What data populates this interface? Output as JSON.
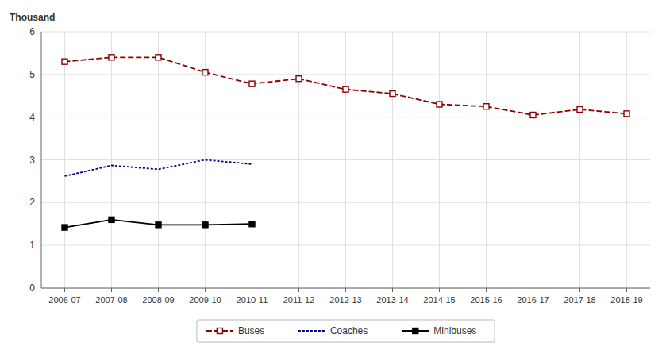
{
  "chart_data": {
    "type": "line",
    "ylabel": "Thousand",
    "categories": [
      "2006-07",
      "2007-08",
      "2008-09",
      "2009-10",
      "2010-11",
      "2011-12",
      "2012-13",
      "2013-14",
      "2014-15",
      "2015-16",
      "2016-17",
      "2017-18",
      "2018-19"
    ],
    "series": [
      {
        "name": "Buses",
        "color": "#8B0000",
        "marker": "open-square",
        "line_style": "dashed",
        "values": [
          5.3,
          5.4,
          5.4,
          5.05,
          4.78,
          4.9,
          4.65,
          4.55,
          4.3,
          4.25,
          4.05,
          4.18,
          4.08
        ]
      },
      {
        "name": "Coaches",
        "color": "#00008B",
        "marker": "none",
        "line_style": "dotted",
        "values": [
          2.62,
          2.87,
          2.78,
          3.0,
          2.9,
          null,
          null,
          null,
          null,
          null,
          null,
          null,
          null
        ]
      },
      {
        "name": "Minibuses",
        "color": "#000000",
        "marker": "square",
        "line_style": "solid",
        "values": [
          1.42,
          1.6,
          1.48,
          1.48,
          1.5,
          null,
          null,
          null,
          null,
          null,
          null,
          null,
          null
        ]
      }
    ],
    "ylim": [
      0,
      6
    ],
    "yticks": [
      0,
      1,
      2,
      3,
      4,
      5,
      6
    ],
    "grid": true,
    "legend": "bottom"
  }
}
